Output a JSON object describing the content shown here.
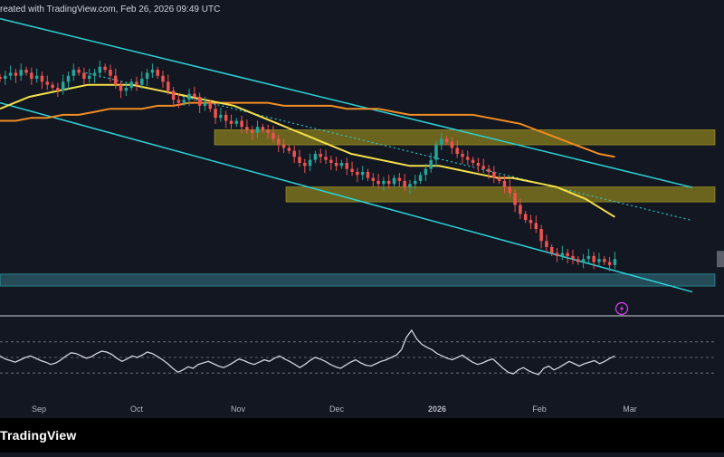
{
  "header": {
    "caption": "reated with TradingView.com, Feb 26, 2026 09:49 UTC"
  },
  "footer": {
    "brand": "TradingView"
  },
  "colors": {
    "background": "#131722",
    "bullish": "#26a69a",
    "bearish": "#ef5350",
    "channel_line": "#2ad3d6",
    "ma_fast": "#f5e04a",
    "ma_slow": "#f08c22",
    "zone_resistance_fill": "#8a7f1e",
    "zone_support_fill": "#2a5968",
    "rsi_line": "#d1d4dc",
    "axis_text": "#b2b5be",
    "alert_icon": "#e040fb"
  },
  "icons": {
    "alert": "lightning-bolt-icon"
  },
  "chart_data": [
    {
      "type": "candlestick",
      "title": "",
      "xlabel": "",
      "ylabel": "",
      "x_tick_labels": [
        "Sep",
        "Oct",
        "Nov",
        "Dec",
        "2026",
        "Feb",
        "Mar"
      ],
      "grid": false,
      "legend": "none",
      "note_scale": "price axis not visible in screenshot; values are on a relative 0-100 scale",
      "ylim": [
        0,
        100
      ],
      "series": [
        {
          "name": "",
          "role": "price-close",
          "values": [
            78,
            79,
            80,
            79,
            81,
            80,
            78,
            79,
            77,
            76,
            75,
            74,
            77,
            79,
            81,
            80,
            78,
            79,
            80,
            82,
            81,
            79,
            76,
            74,
            75,
            77,
            76,
            78,
            80,
            81,
            79,
            77,
            74,
            71,
            70,
            71,
            73,
            72,
            69,
            70,
            68,
            65,
            66,
            64,
            63,
            64,
            62,
            61,
            60,
            62,
            61,
            60,
            58,
            56,
            55,
            54,
            52,
            50,
            49,
            51,
            53,
            52,
            51,
            50,
            49,
            50,
            48,
            47,
            46,
            47,
            45,
            44,
            43,
            44,
            43,
            45,
            44,
            42,
            43,
            44,
            46,
            48,
            51,
            56,
            58,
            57,
            55,
            53,
            52,
            51,
            50,
            49,
            48,
            47,
            45,
            44,
            42,
            40,
            36,
            33,
            31,
            30,
            28,
            24,
            22,
            20,
            19,
            20,
            19,
            18,
            17,
            18,
            19,
            17,
            18,
            17,
            16,
            18
          ]
        },
        {
          "name": "",
          "role": "ma-fast",
          "values": [
            68,
            70,
            72,
            73,
            74,
            75,
            76,
            76,
            76,
            76,
            75,
            74,
            73,
            72,
            71,
            70,
            69,
            67,
            65,
            63,
            61,
            59,
            57,
            55,
            53,
            52,
            51,
            50,
            49,
            49,
            49,
            48,
            47,
            46,
            45,
            45,
            44,
            43,
            42,
            40,
            38,
            35,
            32
          ]
        },
        {
          "name": "",
          "role": "ma-slow",
          "values": [
            64,
            64,
            65,
            65,
            66,
            66,
            67,
            68,
            68,
            68,
            69,
            69,
            70,
            70,
            70,
            70,
            70,
            70,
            69,
            69,
            69,
            69,
            68,
            68,
            68,
            67,
            66,
            66,
            66,
            66,
            66,
            65,
            64,
            63,
            61,
            59,
            57,
            55,
            53,
            52
          ]
        }
      ],
      "channel": {
        "upper": {
          "from": [
            0,
            98
          ],
          "to": [
            100,
            40
          ]
        },
        "lower": {
          "from": [
            0,
            70
          ],
          "to": [
            100,
            5
          ]
        },
        "mid": {
          "from": [
            12,
            80
          ],
          "to": [
            100,
            29
          ]
        }
      },
      "zones": [
        {
          "name": "",
          "role": "resistance",
          "low": 56,
          "high": 61
        },
        {
          "name": "",
          "role": "support",
          "low": 37,
          "high": 42
        },
        {
          "name": "",
          "role": "support-lower",
          "low": 9,
          "high": 13
        }
      ]
    },
    {
      "type": "line",
      "title": "",
      "xlabel": "",
      "ylabel": "",
      "ylim": [
        0,
        100
      ],
      "grid": false,
      "legend": "none",
      "reference_lines": [
        70,
        50,
        30
      ],
      "series": [
        {
          "name": "",
          "role": "rsi",
          "values": [
            52,
            48,
            46,
            44,
            47,
            50,
            52,
            49,
            46,
            44,
            41,
            43,
            47,
            52,
            56,
            55,
            52,
            49,
            51,
            55,
            58,
            57,
            54,
            49,
            45,
            48,
            52,
            50,
            53,
            57,
            55,
            51,
            47,
            42,
            36,
            31,
            34,
            38,
            36,
            41,
            43,
            45,
            42,
            39,
            37,
            40,
            44,
            48,
            46,
            43,
            41,
            44,
            47,
            45,
            49,
            52,
            48,
            45,
            41,
            37,
            41,
            46,
            50,
            48,
            45,
            41,
            38,
            36,
            40,
            44,
            47,
            43,
            40,
            39,
            42,
            45,
            47,
            50,
            53,
            60,
            76,
            85,
            74,
            67,
            63,
            60,
            55,
            52,
            49,
            47,
            50,
            53,
            48,
            44,
            41,
            43,
            46,
            48,
            42,
            36,
            31,
            29,
            34,
            37,
            33,
            30,
            28,
            36,
            39,
            34,
            37,
            41,
            45,
            42,
            39,
            42,
            44,
            46,
            42,
            45,
            49,
            52
          ]
        }
      ]
    }
  ]
}
